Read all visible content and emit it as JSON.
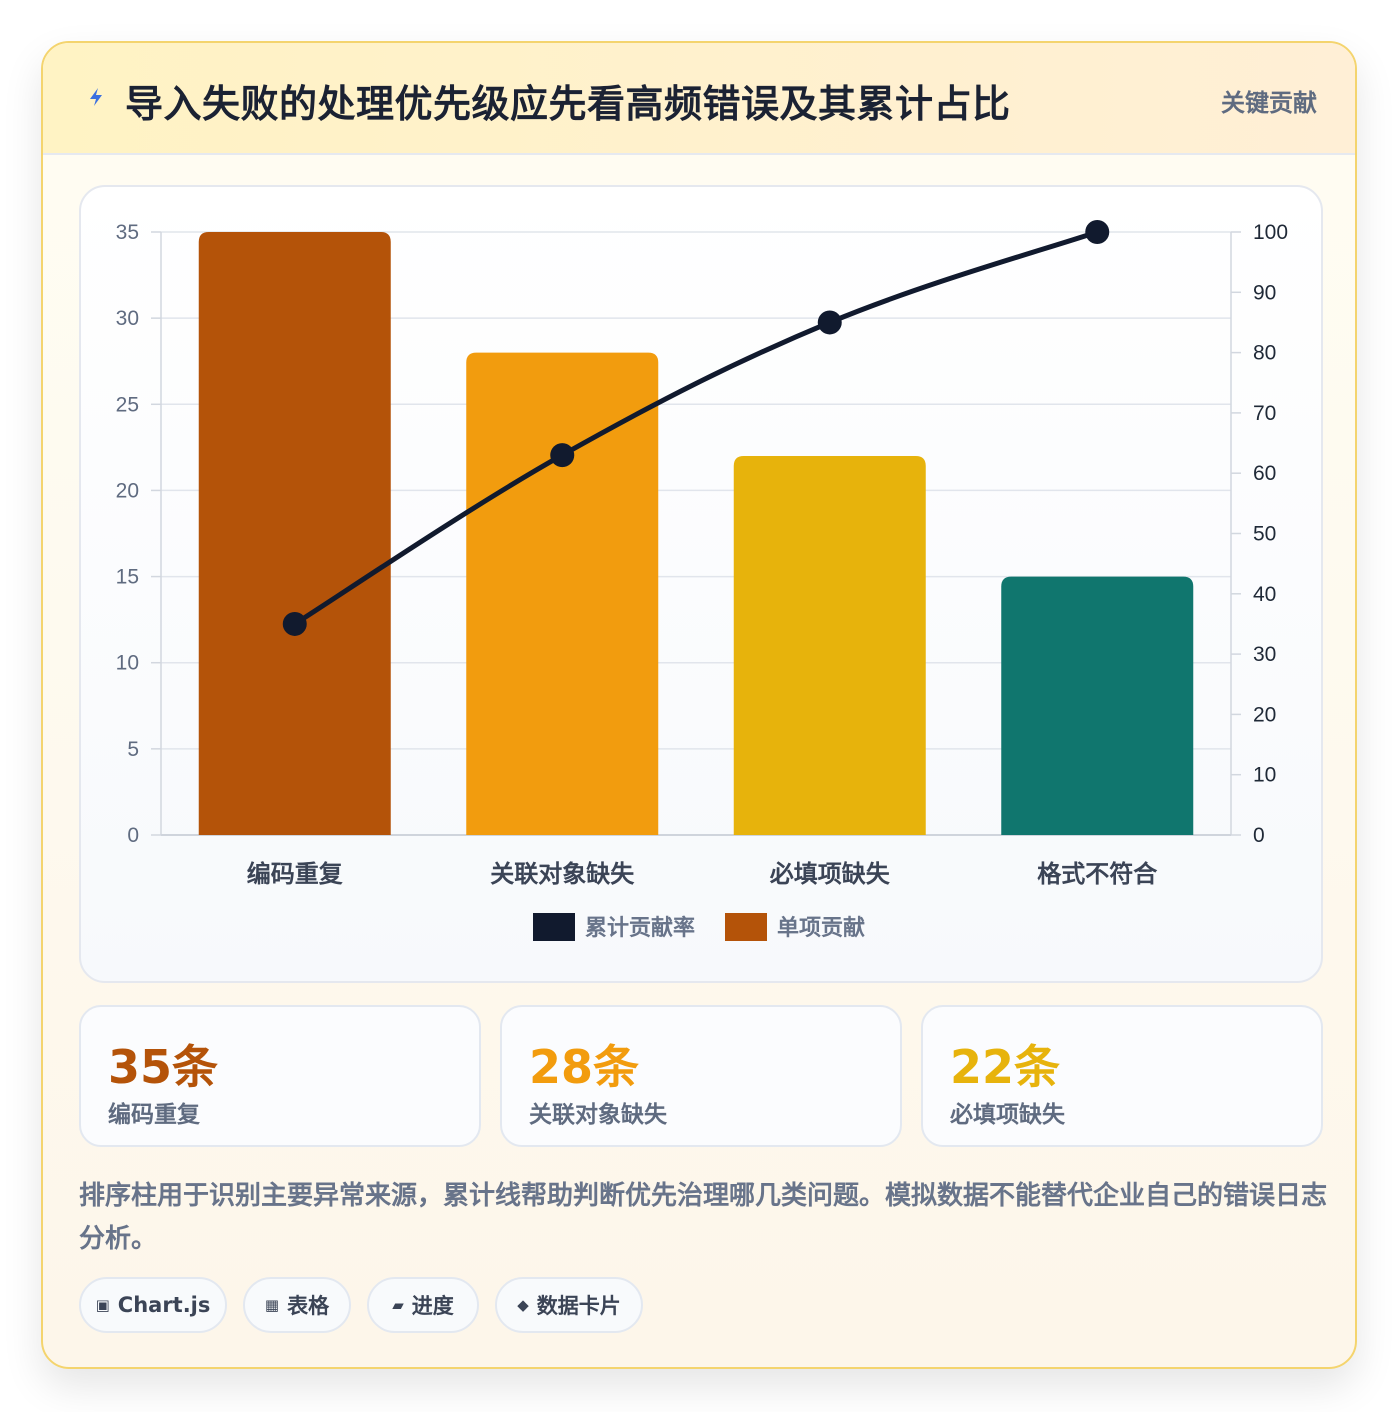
{
  "header": {
    "title": "导入失败的处理优先级应先看高频错误及其累计占比",
    "badge": "关键贡献"
  },
  "chart_data": {
    "type": "bar",
    "categories": [
      "编码重复",
      "关联对象缺失",
      "必填项缺失",
      "格式不符合"
    ],
    "series": [
      {
        "name": "单项贡献",
        "type": "bar",
        "axis": "left",
        "values": [
          35,
          28,
          22,
          15
        ]
      },
      {
        "name": "累计贡献率",
        "type": "line",
        "axis": "right",
        "values": [
          35,
          63,
          85,
          100
        ]
      }
    ],
    "bar_colors": [
      "#b45309",
      "#f29c0e",
      "#e7b30c",
      "#10766e"
    ],
    "line_color": "#111a2e",
    "y_left": {
      "min": 0,
      "max": 35,
      "step": 5
    },
    "y_right": {
      "min": 0,
      "max": 100,
      "step": 10
    },
    "legend": [
      {
        "label": "累计贡献率",
        "color": "#111a2e"
      },
      {
        "label": "单项贡献",
        "color": "#b45309"
      }
    ],
    "legend_position": "bottom",
    "grid": true
  },
  "stats": [
    {
      "value": "35条",
      "label": "编码重复",
      "color": "#b45309"
    },
    {
      "value": "28条",
      "label": "关联对象缺失",
      "color": "#f29c0e"
    },
    {
      "value": "22条",
      "label": "必填项缺失",
      "color": "#e7b30c"
    }
  ],
  "note": "排序柱用于识别主要异常来源，累计线帮助判断优先治理哪几类问题。模拟数据不能替代企业自己的错误日志分析。",
  "tags": [
    {
      "icon": "▣",
      "label": "Chart.js",
      "icon_name": "chart-icon"
    },
    {
      "icon": "▦",
      "label": "表格",
      "icon_name": "table-icon"
    },
    {
      "icon": "▰",
      "label": "进度",
      "icon_name": "progress-icon"
    },
    {
      "icon": "◆",
      "label": "数据卡片",
      "icon_name": "card-icon"
    }
  ]
}
